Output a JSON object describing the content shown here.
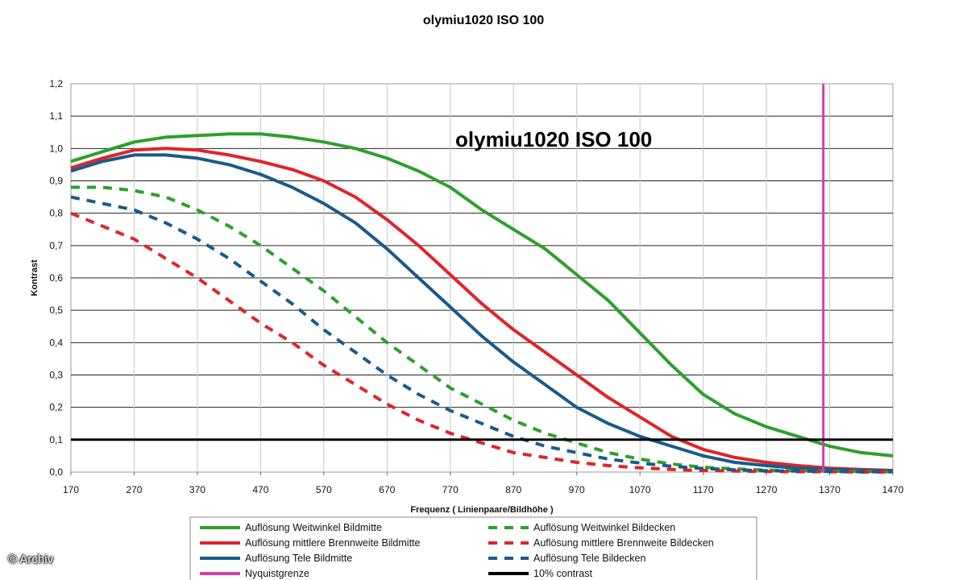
{
  "credit": "© Archiv",
  "chart_data": {
    "type": "line",
    "title": "olymiu1020 ISO 100",
    "inner_title": "olymiu1020 ISO 100",
    "xlabel": "Frequenz ( Linienpaare/Bildhöhe )",
    "ylabel": "Kontrast",
    "xlim": [
      170,
      1470
    ],
    "ylim": [
      0,
      1.2
    ],
    "x_ticks": [
      "170",
      "270",
      "370",
      "470",
      "570",
      "670",
      "770",
      "870",
      "970",
      "1070",
      "1170",
      "1270",
      "1370",
      "1470"
    ],
    "y_ticks": [
      "0,0",
      "0,1",
      "0,2",
      "0,3",
      "0,4",
      "0,5",
      "0,6",
      "0,7",
      "0,8",
      "0,9",
      "1,0",
      "1,1",
      "1,2"
    ],
    "grid": true,
    "legend_position": "bottom",
    "series": [
      {
        "name": "Auflösung Weitwinkel Bildmitte",
        "color": "#2ca02c",
        "dash": false,
        "x": [
          170,
          220,
          270,
          320,
          370,
          420,
          470,
          520,
          570,
          620,
          670,
          720,
          770,
          820,
          870,
          920,
          970,
          1020,
          1070,
          1120,
          1170,
          1220,
          1270,
          1320,
          1370,
          1420,
          1470
        ],
        "y": [
          0.96,
          0.99,
          1.02,
          1.035,
          1.04,
          1.045,
          1.045,
          1.035,
          1.02,
          1.0,
          0.97,
          0.93,
          0.88,
          0.81,
          0.75,
          0.69,
          0.61,
          0.53,
          0.43,
          0.33,
          0.24,
          0.18,
          0.14,
          0.11,
          0.08,
          0.06,
          0.05
        ]
      },
      {
        "name": "Auflösung mittlere Brennweite Bildmitte",
        "color": "#e0232a",
        "dash": false,
        "x": [
          170,
          220,
          270,
          320,
          370,
          420,
          470,
          520,
          570,
          620,
          670,
          720,
          770,
          820,
          870,
          920,
          970,
          1020,
          1070,
          1120,
          1170,
          1220,
          1270,
          1320,
          1370,
          1420,
          1470
        ],
        "y": [
          0.94,
          0.97,
          0.995,
          1.0,
          0.995,
          0.98,
          0.96,
          0.935,
          0.9,
          0.85,
          0.78,
          0.7,
          0.61,
          0.52,
          0.44,
          0.37,
          0.3,
          0.23,
          0.17,
          0.11,
          0.07,
          0.045,
          0.03,
          0.02,
          0.012,
          0.008,
          0.005
        ]
      },
      {
        "name": "Auflösung Tele Bildmitte",
        "color": "#1a5a8a",
        "dash": false,
        "x": [
          170,
          220,
          270,
          320,
          370,
          420,
          470,
          520,
          570,
          620,
          670,
          720,
          770,
          820,
          870,
          920,
          970,
          1020,
          1070,
          1120,
          1170,
          1220,
          1270,
          1320,
          1370,
          1420,
          1470
        ],
        "y": [
          0.93,
          0.96,
          0.98,
          0.98,
          0.97,
          0.95,
          0.92,
          0.88,
          0.83,
          0.77,
          0.69,
          0.6,
          0.51,
          0.42,
          0.34,
          0.27,
          0.2,
          0.15,
          0.11,
          0.08,
          0.05,
          0.03,
          0.02,
          0.012,
          0.008,
          0.005,
          0.003
        ]
      },
      {
        "name": "Auflösung Weitwinkel Bildecken",
        "color": "#2ca02c",
        "dash": true,
        "x": [
          170,
          220,
          270,
          320,
          370,
          420,
          470,
          520,
          570,
          620,
          670,
          720,
          770,
          820,
          870,
          920,
          970,
          1020,
          1070,
          1120,
          1170,
          1220,
          1270,
          1320,
          1370,
          1420,
          1470
        ],
        "y": [
          0.88,
          0.88,
          0.87,
          0.85,
          0.81,
          0.76,
          0.7,
          0.63,
          0.56,
          0.48,
          0.4,
          0.33,
          0.26,
          0.21,
          0.16,
          0.12,
          0.09,
          0.06,
          0.04,
          0.025,
          0.015,
          0.01,
          0.006,
          0.004,
          0.003,
          0.002,
          0.001
        ]
      },
      {
        "name": "Auflösung mittlere Brennweite Bildecken",
        "color": "#e0232a",
        "dash": true,
        "x": [
          170,
          220,
          270,
          320,
          370,
          420,
          470,
          520,
          570,
          620,
          670,
          720,
          770,
          820,
          870,
          920,
          970,
          1020,
          1070,
          1120,
          1170,
          1220,
          1270,
          1320,
          1370,
          1420,
          1470
        ],
        "y": [
          0.8,
          0.76,
          0.72,
          0.66,
          0.6,
          0.53,
          0.46,
          0.4,
          0.33,
          0.27,
          0.21,
          0.16,
          0.12,
          0.09,
          0.06,
          0.045,
          0.03,
          0.02,
          0.013,
          0.008,
          0.005,
          0.003,
          0.002,
          0.001,
          0.001,
          0.0,
          0.0
        ]
      },
      {
        "name": "Auflösung Tele Bildecken",
        "color": "#1a5a8a",
        "dash": true,
        "x": [
          170,
          220,
          270,
          320,
          370,
          420,
          470,
          520,
          570,
          620,
          670,
          720,
          770,
          820,
          870,
          920,
          970,
          1020,
          1070,
          1120,
          1170,
          1220,
          1270,
          1320,
          1370,
          1420,
          1470
        ],
        "y": [
          0.85,
          0.83,
          0.81,
          0.77,
          0.72,
          0.66,
          0.59,
          0.52,
          0.44,
          0.37,
          0.3,
          0.24,
          0.19,
          0.15,
          0.11,
          0.08,
          0.06,
          0.04,
          0.028,
          0.018,
          0.011,
          0.007,
          0.004,
          0.003,
          0.002,
          0.001,
          0.001
        ]
      },
      {
        "name": "Nyquistgrenze",
        "color": "#d63fa8",
        "dash": false,
        "x": [
          1360,
          1360
        ],
        "y": [
          0,
          1.2
        ]
      },
      {
        "name": "10% contrast",
        "color": "#000000",
        "dash": false,
        "x": [
          170,
          1470
        ],
        "y": [
          0.1,
          0.1
        ]
      }
    ]
  }
}
